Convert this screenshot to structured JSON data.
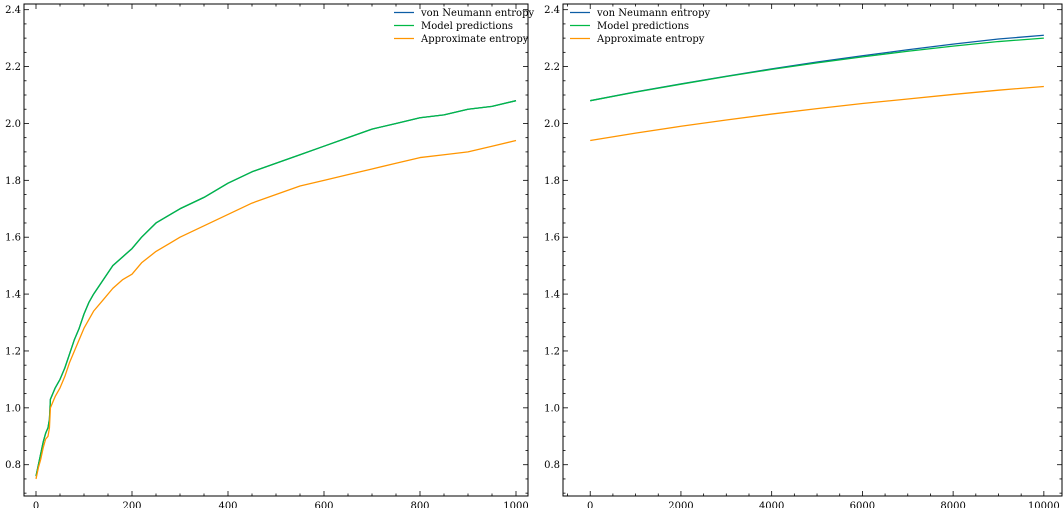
{
  "chart_data": [
    {
      "type": "line",
      "title": "",
      "xlabel": "",
      "ylabel": "",
      "xlim": [
        -25,
        1025
      ],
      "ylim": [
        0.69,
        2.42
      ],
      "xticks": [
        0,
        200,
        400,
        600,
        800,
        1000
      ],
      "yticks": [
        0.8,
        1.0,
        1.2,
        1.4,
        1.6,
        1.8,
        2.0,
        2.2,
        2.4
      ],
      "xtick_labels": [
        "0",
        "200",
        "400",
        "600",
        "800",
        "1000"
      ],
      "ytick_labels": [
        "0.8",
        "1.0",
        "1.2",
        "1.4",
        "1.6",
        "1.8",
        "2.0",
        "2.2",
        "2.4"
      ],
      "legend": {
        "position": "top-right"
      },
      "series": [
        {
          "name": "von Neumann entropy",
          "color": "#0c5da5",
          "x": [
            0,
            5,
            10,
            15,
            20,
            25,
            28,
            30,
            35,
            40,
            50,
            60,
            70,
            80,
            90,
            100,
            110,
            120,
            140,
            160,
            180,
            200,
            220,
            250,
            280,
            300,
            350,
            400,
            450,
            500,
            550,
            600,
            650,
            700,
            750,
            800,
            850,
            900,
            950,
            1000
          ],
          "y": [
            0.76,
            0.8,
            0.84,
            0.88,
            0.91,
            0.93,
            0.96,
            1.03,
            1.05,
            1.07,
            1.1,
            1.14,
            1.19,
            1.24,
            1.28,
            1.33,
            1.37,
            1.4,
            1.45,
            1.5,
            1.53,
            1.56,
            1.6,
            1.65,
            1.68,
            1.7,
            1.74,
            1.79,
            1.83,
            1.86,
            1.89,
            1.92,
            1.95,
            1.98,
            2.0,
            2.02,
            2.03,
            2.05,
            2.06,
            2.08
          ]
        },
        {
          "name": "Model predictions",
          "color": "#00b945",
          "x": [
            0,
            5,
            10,
            15,
            20,
            25,
            28,
            30,
            35,
            40,
            50,
            60,
            70,
            80,
            90,
            100,
            110,
            120,
            140,
            160,
            180,
            200,
            220,
            250,
            280,
            300,
            350,
            400,
            450,
            500,
            550,
            600,
            650,
            700,
            750,
            800,
            850,
            900,
            950,
            1000
          ],
          "y": [
            0.76,
            0.8,
            0.84,
            0.88,
            0.91,
            0.93,
            0.96,
            1.03,
            1.05,
            1.07,
            1.1,
            1.14,
            1.19,
            1.24,
            1.28,
            1.33,
            1.37,
            1.4,
            1.45,
            1.5,
            1.53,
            1.56,
            1.6,
            1.65,
            1.68,
            1.7,
            1.74,
            1.79,
            1.83,
            1.86,
            1.89,
            1.92,
            1.95,
            1.98,
            2.0,
            2.02,
            2.03,
            2.05,
            2.06,
            2.08
          ]
        },
        {
          "name": "Approximate entropy",
          "color": "#ff9500",
          "x": [
            0,
            5,
            10,
            15,
            20,
            25,
            28,
            30,
            35,
            40,
            50,
            60,
            70,
            80,
            90,
            100,
            110,
            120,
            140,
            160,
            180,
            200,
            220,
            250,
            280,
            300,
            350,
            400,
            450,
            500,
            550,
            600,
            650,
            700,
            750,
            800,
            850,
            900,
            950,
            1000
          ],
          "y": [
            0.75,
            0.79,
            0.82,
            0.86,
            0.89,
            0.9,
            0.93,
            1.0,
            1.02,
            1.04,
            1.07,
            1.11,
            1.16,
            1.2,
            1.24,
            1.28,
            1.31,
            1.34,
            1.38,
            1.42,
            1.45,
            1.47,
            1.51,
            1.55,
            1.58,
            1.6,
            1.64,
            1.68,
            1.72,
            1.75,
            1.78,
            1.8,
            1.82,
            1.84,
            1.86,
            1.88,
            1.89,
            1.9,
            1.92,
            1.94
          ]
        }
      ]
    },
    {
      "type": "line",
      "title": "",
      "xlabel": "",
      "ylabel": "",
      "xlim": [
        -600,
        10400
      ],
      "ylim": [
        0.69,
        2.42
      ],
      "xticks": [
        0,
        2000,
        4000,
        6000,
        8000,
        10000
      ],
      "yticks": [
        0.8,
        1.0,
        1.2,
        1.4,
        1.6,
        1.8,
        2.0,
        2.2,
        2.4
      ],
      "xtick_labels": [
        "0",
        "2000",
        "4000",
        "6000",
        "8000",
        "10000"
      ],
      "ytick_labels": [
        "0.8",
        "1.0",
        "1.2",
        "1.4",
        "1.6",
        "1.8",
        "2.0",
        "2.2",
        "2.4"
      ],
      "legend": {
        "position": "top-left"
      },
      "series": [
        {
          "name": "von Neumann entropy",
          "color": "#0c5da5",
          "x": [
            0,
            1000,
            2000,
            3000,
            4000,
            5000,
            6000,
            7000,
            8000,
            9000,
            10000
          ],
          "y": [
            2.08,
            2.111,
            2.139,
            2.166,
            2.192,
            2.216,
            2.238,
            2.259,
            2.279,
            2.297,
            2.31
          ]
        },
        {
          "name": "Model predictions",
          "color": "#00b945",
          "x": [
            0,
            1000,
            2000,
            3000,
            4000,
            5000,
            6000,
            7000,
            8000,
            9000,
            10000
          ],
          "y": [
            2.08,
            2.11,
            2.138,
            2.165,
            2.19,
            2.213,
            2.234,
            2.254,
            2.272,
            2.288,
            2.3
          ]
        },
        {
          "name": "Approximate entropy",
          "color": "#ff9500",
          "x": [
            0,
            1000,
            2000,
            3000,
            4000,
            5000,
            6000,
            7000,
            8000,
            9000,
            10000
          ],
          "y": [
            1.94,
            1.966,
            1.99,
            2.012,
            2.033,
            2.052,
            2.07,
            2.086,
            2.102,
            2.117,
            2.13
          ]
        }
      ]
    }
  ]
}
